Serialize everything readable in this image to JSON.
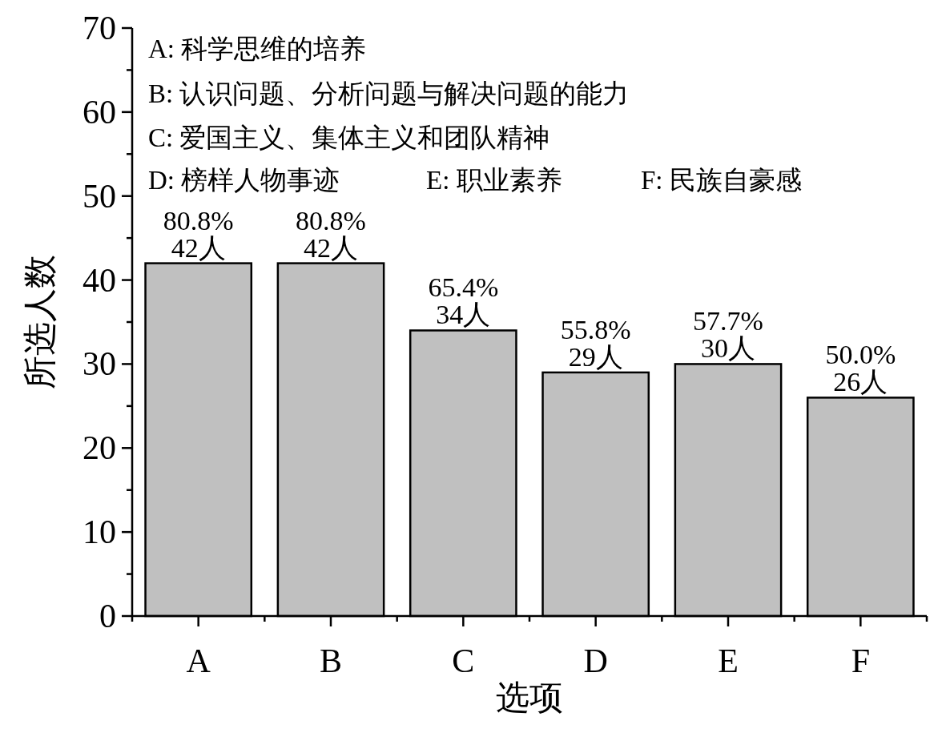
{
  "chart_data": {
    "type": "bar",
    "xlabel": "选项",
    "ylabel": "所选人数",
    "categories": [
      "A",
      "B",
      "C",
      "D",
      "E",
      "F"
    ],
    "values": [
      42,
      42,
      34,
      29,
      30,
      26
    ],
    "color": "#c0c0c0",
    "value_labels": [
      "80.8%\n42人",
      "80.8%\n42人",
      "65.4%\n34人",
      "55.8%\n29人",
      "57.7%\n30人",
      "50.0%\n26人"
    ],
    "ylim": [
      0,
      70
    ],
    "yticks": [
      0,
      {
        "value": 5,
        "label": null
      },
      10,
      {
        "value": 15,
        "label": null
      },
      20,
      {
        "value": 25,
        "label": null
      },
      30,
      {
        "value": 35,
        "label": null
      },
      40,
      {
        "value": 45,
        "label": null
      },
      50,
      {
        "value": 55,
        "label": null
      },
      60,
      {
        "value": 65,
        "label": null
      },
      70
    ],
    "grid": false,
    "annotations": [
      "A: 科学思维的培养",
      "B: 认识问题、分析问题与解决问题的能力",
      "C: 爱国主义、集体主义和团队精神",
      "D: 榜样人物事迹",
      "E: 职业素养",
      "F: 民族自豪感"
    ]
  }
}
